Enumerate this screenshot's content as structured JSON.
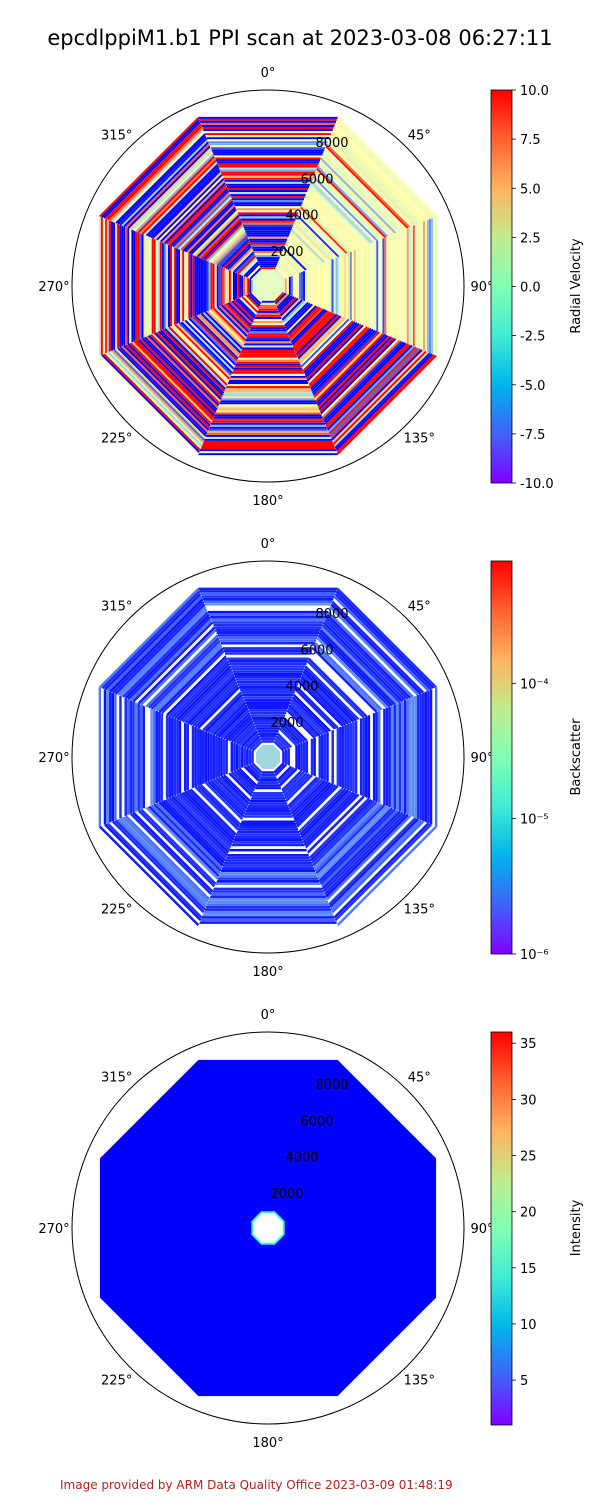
{
  "title": "epcdlppiM1.b1 PPI scan at 2023-03-08 06:27:11",
  "footer": "Image provided by ARM Data Quality Office 2023-03-09 01:48:19",
  "chart_data": [
    {
      "type": "heatmap",
      "projection": "polar",
      "theta_zero": "N",
      "theta_direction": "clockwise",
      "theta_ticks": [
        "0°",
        "45°",
        "90°",
        "135°",
        "180°",
        "225°",
        "270°",
        "315°"
      ],
      "r_ticks": [
        2000,
        4000,
        6000,
        8000
      ],
      "r_tick_labels": [
        "2000",
        "4000",
        "6000",
        "8000"
      ],
      "r_max": 10000,
      "colorbar": {
        "label": "Radial Velocity",
        "scale": "linear",
        "range": [
          -10,
          10
        ],
        "ticks": [
          "-10.0",
          "-7.5",
          "-5.0",
          "-2.5",
          "0.0",
          "2.5",
          "5.0",
          "7.5",
          "10.0"
        ]
      },
      "colormap": "rainbow"
    },
    {
      "type": "heatmap",
      "projection": "polar",
      "theta_zero": "N",
      "theta_direction": "clockwise",
      "theta_ticks": [
        "0°",
        "45°",
        "90°",
        "135°",
        "180°",
        "225°",
        "270°",
        "315°"
      ],
      "r_ticks": [
        2000,
        4000,
        6000,
        8000
      ],
      "r_tick_labels": [
        "2000",
        "4000",
        "6000",
        "8000"
      ],
      "r_max": 10000,
      "colorbar": {
        "label": "Backscatter",
        "scale": "log",
        "range": [
          1e-06,
          0.0008
        ],
        "ticks": [
          "10⁻⁶",
          "10⁻⁵",
          "10⁻⁴"
        ]
      },
      "colormap": "rainbow"
    },
    {
      "type": "heatmap",
      "projection": "polar",
      "theta_zero": "N",
      "theta_direction": "clockwise",
      "theta_ticks": [
        "0°",
        "45°",
        "90°",
        "135°",
        "180°",
        "225°",
        "270°",
        "315°"
      ],
      "r_ticks": [
        2000,
        4000,
        6000,
        8000
      ],
      "r_tick_labels": [
        "2000",
        "4000",
        "6000",
        "8000"
      ],
      "r_max": 10000,
      "colorbar": {
        "label": "Intensity",
        "scale": "linear",
        "range": [
          1,
          36
        ],
        "ticks": [
          "5",
          "10",
          "15",
          "20",
          "25",
          "30",
          "35"
        ]
      },
      "colormap": "rainbow"
    }
  ]
}
